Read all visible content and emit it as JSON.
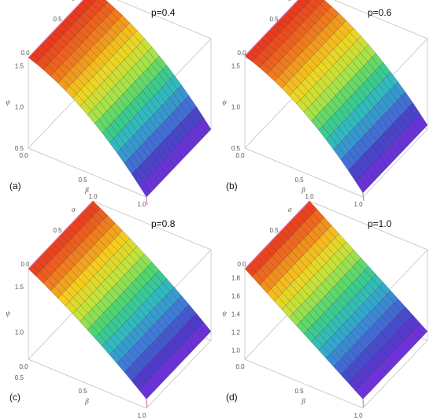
{
  "figure": {
    "panels": [
      {
        "label": "(a)",
        "p_text": "p=0.4"
      },
      {
        "label": "(b)",
        "p_text": "p=0.6"
      },
      {
        "label": "(c)",
        "p_text": "p=0.8"
      },
      {
        "label": "(d)",
        "p_text": "p=1.0"
      }
    ]
  },
  "chart_data": [
    {
      "type": "surface",
      "p": 0.4,
      "xlabel": "β",
      "ylabel": "σ",
      "zlabel": "ψ",
      "x_ticks": [
        "0.0",
        "0.5",
        "1.0"
      ],
      "y_ticks": [
        "0.0",
        "0.5",
        "1.0"
      ],
      "z_ticks": [
        "1.5",
        "1.0",
        "0.5"
      ],
      "xlim": [
        0,
        1
      ],
      "ylim": [
        0,
        1
      ],
      "zlim": [
        0.5,
        1.6
      ],
      "surface": {
        "z_at_beta0": 1.6,
        "z_at_beta1": 0.5,
        "shape": "concave-down"
      },
      "colormap": [
        "#e8321e",
        "#f07a1e",
        "#f5d21e",
        "#b9e640",
        "#3fd27a",
        "#2fb6c8",
        "#3f7ad8",
        "#4a3cc8",
        "#7a2ee0"
      ]
    },
    {
      "type": "surface",
      "p": 0.6,
      "xlabel": "β",
      "ylabel": "σ",
      "zlabel": "ψ",
      "x_ticks": [
        "0.0",
        "0.5",
        "1.0"
      ],
      "y_ticks": [
        "0.0",
        "0.5",
        "1.0"
      ],
      "z_ticks": [
        "1.5",
        "1.0",
        "0.5"
      ],
      "xlim": [
        0,
        1
      ],
      "ylim": [
        0,
        1
      ],
      "zlim": [
        0.5,
        1.6
      ],
      "surface": {
        "z_at_beta0": 1.62,
        "z_at_beta1": 0.55,
        "shape": "concave-down"
      },
      "colormap": [
        "#e8321e",
        "#f07a1e",
        "#f5d21e",
        "#b9e640",
        "#3fd27a",
        "#2fb6c8",
        "#3f7ad8",
        "#4a3cc8",
        "#7a2ee0"
      ]
    },
    {
      "type": "surface",
      "p": 0.8,
      "xlabel": "β",
      "ylabel": "σ",
      "zlabel": "ψ",
      "x_ticks": [
        "0.0",
        "0.5",
        "1.0"
      ],
      "y_ticks": [
        "0.0",
        "0.5",
        "1.0"
      ],
      "z_ticks": [
        "1.5",
        "1.0",
        "0.5"
      ],
      "xlim": [
        0,
        1
      ],
      "ylim": [
        0,
        1
      ],
      "zlim": [
        0.7,
        1.7
      ],
      "surface": {
        "z_at_beta0": 1.7,
        "z_at_beta1": 0.8,
        "shape": "near-linear"
      },
      "colormap": [
        "#e8321e",
        "#f07a1e",
        "#f5d21e",
        "#b9e640",
        "#3fd27a",
        "#2fb6c8",
        "#3f7ad8",
        "#4a3cc8",
        "#7a2ee0"
      ]
    },
    {
      "type": "surface",
      "p": 1.0,
      "xlabel": "β",
      "ylabel": "σ",
      "zlabel": "ψ",
      "x_ticks": [
        "0.0",
        "0.5",
        "1.0"
      ],
      "y_ticks": [
        "0.0",
        "0.5",
        "1.0"
      ],
      "z_ticks": [
        "1.8",
        "1.6",
        "1.4",
        "1.2",
        "1.0"
      ],
      "xlim": [
        0,
        1
      ],
      "ylim": [
        0,
        1
      ],
      "zlim": [
        0.9,
        1.9
      ],
      "surface": {
        "z_at_beta0": 1.9,
        "z_at_beta1": 1.0,
        "shape": "linear"
      },
      "colormap": [
        "#e8321e",
        "#f07a1e",
        "#f5d21e",
        "#b9e640",
        "#3fd27a",
        "#2fb6c8",
        "#3f7ad8",
        "#4a3cc8",
        "#7a2ee0"
      ]
    }
  ]
}
